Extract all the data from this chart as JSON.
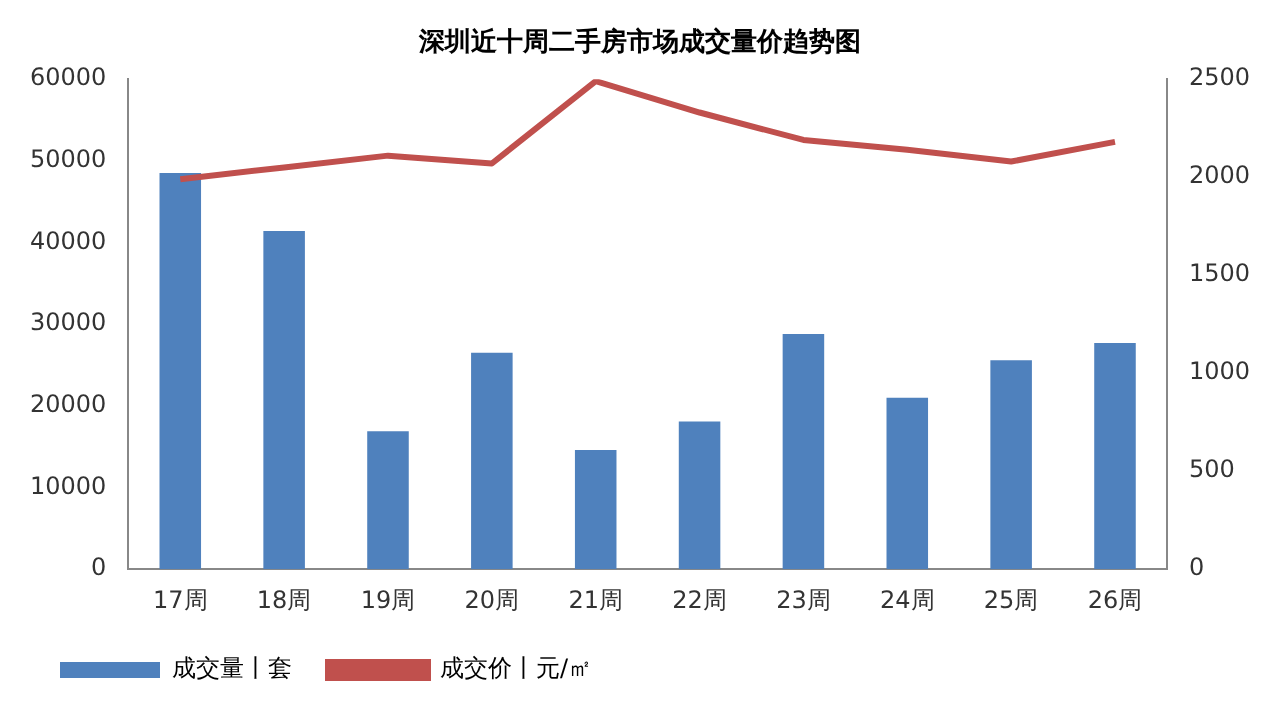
{
  "chart_data": {
    "type": "bar",
    "title": "深圳近十周二手房市场成交量价趋势图",
    "categories": [
      "17周",
      "18周",
      "19周",
      "20周",
      "21周",
      "22周",
      "23周",
      "24周",
      "25周",
      "26周"
    ],
    "series": [
      {
        "name": "成交量丨套",
        "color": "#4f81bd",
        "values": [
          48500,
          41400,
          16900,
          26500,
          14600,
          18100,
          28800,
          21000,
          25600,
          27700
        ]
      },
      {
        "name": "成交价丨元/㎡",
        "type": "line",
        "axis": "y2",
        "color": "#c0504d",
        "values": [
          1990,
          2050,
          2110,
          2070,
          2490,
          2330,
          2190,
          2140,
          2080,
          2180
        ]
      }
    ],
    "ylim": [
      0,
      60000
    ],
    "yticks": [
      0,
      10000,
      20000,
      30000,
      40000,
      50000,
      60000
    ],
    "y2lim": [
      0,
      2500
    ],
    "y2ticks": [
      0,
      500,
      1000,
      1500,
      2000,
      2500
    ],
    "grid": false,
    "legend": "bottom",
    "marker": "none"
  }
}
